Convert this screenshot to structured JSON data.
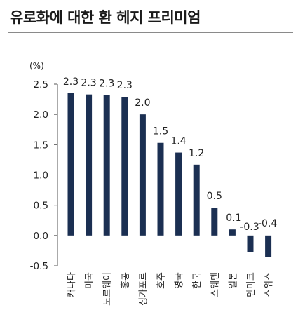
{
  "header": {
    "title": "유로화에 대한 환 헤지 프리미엄"
  },
  "chart_data": {
    "type": "bar",
    "title": "유로화에 대한 환 헤지 프리미엄",
    "ylabel": "(%)",
    "xlabel": "",
    "ylim": [
      -0.5,
      2.5
    ],
    "yticks": [
      "2.5",
      "2.0",
      "1.5",
      "1.0",
      "0.5",
      "0.0",
      "-0.5"
    ],
    "grid": false,
    "legend": "none",
    "bar_color": "#1b2f52",
    "categories": [
      "캐나다",
      "미국",
      "노르웨이",
      "홍콩",
      "싱가포르",
      "호주",
      "영국",
      "한국",
      "스웨덴",
      "일본",
      "덴마크",
      "스위스"
    ],
    "values": [
      2.35,
      2.33,
      2.32,
      2.29,
      2.0,
      1.53,
      1.37,
      1.17,
      0.46,
      0.1,
      -0.27,
      -0.36
    ],
    "data_labels": [
      "2.3",
      "2.3",
      "2.3",
      "2.3",
      "2.0",
      "1.5",
      "1.4",
      "1.2",
      "0.5",
      "0.1",
      "-0.3",
      "-0.4"
    ]
  }
}
